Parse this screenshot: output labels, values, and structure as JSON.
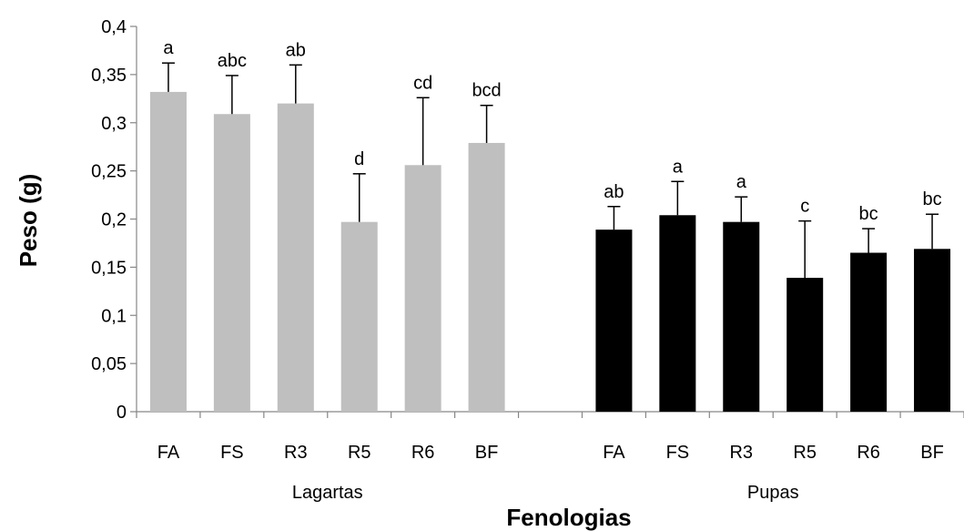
{
  "chart_data": {
    "type": "bar",
    "xlabel": "Fenologias",
    "ylabel": "Peso (g)",
    "ylim": [
      0,
      0.4
    ],
    "yticks": [
      "0",
      "0,05",
      "0,1",
      "0,15",
      "0,2",
      "0,25",
      "0,3",
      "0,35",
      "0,4"
    ],
    "grid": false,
    "groups": [
      {
        "name": "Lagartas",
        "color": "#bfbfbf",
        "categories": [
          "FA",
          "FS",
          "R3",
          "R5",
          "R6",
          "BF"
        ],
        "values": [
          0.332,
          0.309,
          0.32,
          0.197,
          0.256,
          0.279
        ],
        "errors": [
          0.03,
          0.04,
          0.04,
          0.05,
          0.07,
          0.039
        ],
        "labels": [
          "a",
          "abc",
          "ab",
          "d",
          "cd",
          "bcd"
        ]
      },
      {
        "name": "Pupas",
        "color": "#000000",
        "categories": [
          "FA",
          "FS",
          "R3",
          "R5",
          "R6",
          "BF"
        ],
        "values": [
          0.189,
          0.204,
          0.197,
          0.139,
          0.165,
          0.169
        ],
        "errors": [
          0.024,
          0.035,
          0.026,
          0.059,
          0.025,
          0.036
        ],
        "labels": [
          "ab",
          "a",
          "a",
          "c",
          "bc",
          "bc"
        ]
      }
    ]
  }
}
